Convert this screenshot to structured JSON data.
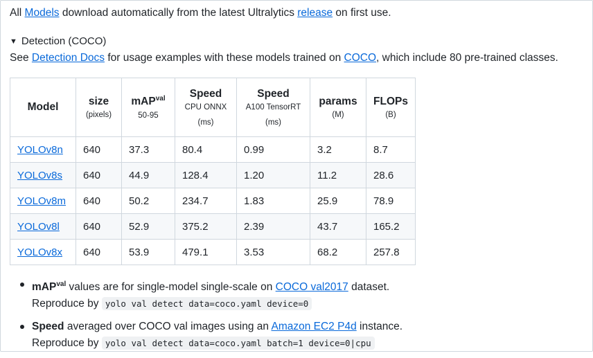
{
  "intro": {
    "prefix": "All",
    "models_link": "Models",
    "middle": "download automatically from the latest Ultralytics",
    "release_link": "release",
    "suffix": "on first use."
  },
  "details": {
    "summary": "Detection (COCO)",
    "expanded": true
  },
  "description": {
    "prefix": "See",
    "docs_link": "Detection Docs",
    "middle": "for usage examples with these models trained on",
    "coco_link": "COCO",
    "suffix": ", which include 80 pre-trained classes."
  },
  "table": {
    "headers": [
      {
        "main": "Model",
        "sup": "",
        "sub": "",
        "unit": ""
      },
      {
        "main": "size",
        "sup": "",
        "sub": "(pixels)",
        "unit": ""
      },
      {
        "main": "mAP",
        "sup": "val",
        "sub": "50-95",
        "unit": ""
      },
      {
        "main": "Speed",
        "sup": "",
        "sub": "CPU ONNX",
        "unit": "(ms)"
      },
      {
        "main": "Speed",
        "sup": "",
        "sub": "A100 TensorRT",
        "unit": "(ms)"
      },
      {
        "main": "params",
        "sup": "",
        "sub": "(M)",
        "unit": ""
      },
      {
        "main": "FLOPs",
        "sup": "",
        "sub": "(B)",
        "unit": ""
      }
    ],
    "rows": [
      [
        "YOLOv8n",
        "640",
        "37.3",
        "80.4",
        "0.99",
        "3.2",
        "8.7"
      ],
      [
        "YOLOv8s",
        "640",
        "44.9",
        "128.4",
        "1.20",
        "11.2",
        "28.6"
      ],
      [
        "YOLOv8m",
        "640",
        "50.2",
        "234.7",
        "1.83",
        "25.9",
        "78.9"
      ],
      [
        "YOLOv8l",
        "640",
        "52.9",
        "375.2",
        "2.39",
        "43.7",
        "165.2"
      ],
      [
        "YOLOv8x",
        "640",
        "53.9",
        "479.1",
        "3.53",
        "68.2",
        "257.8"
      ]
    ]
  },
  "notes": [
    {
      "bold": "mAP",
      "bold_sup": "val",
      "text": "values are for single-model single-scale on",
      "link": "COCO val2017",
      "after": "dataset.",
      "reproduce": "Reproduce by",
      "code": "yolo val detect data=coco.yaml device=0"
    },
    {
      "bold": "Speed",
      "bold_sup": "",
      "text": "averaged over COCO val images using an",
      "link": "Amazon EC2 P4d",
      "after": "instance.",
      "reproduce": "Reproduce by",
      "code": "yolo val detect data=coco.yaml batch=1 device=0|cpu"
    }
  ],
  "colors": {
    "link": "#0969da",
    "text": "#1f2328",
    "border": "#d0d7de",
    "row_alt": "#f6f8fa",
    "code_bg": "#eff1f3"
  }
}
